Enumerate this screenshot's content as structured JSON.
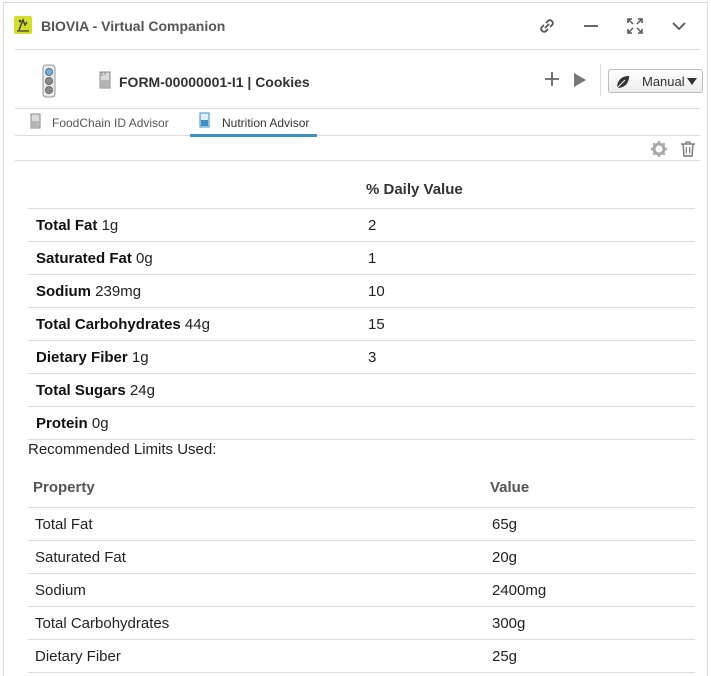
{
  "window": {
    "title": "BIOVIA - Virtual Companion",
    "accent": "#d3de2b"
  },
  "header": {
    "form_title": "FORM-00000001-I1 | Cookies",
    "mode_label": "Manual"
  },
  "tabs": [
    {
      "label": "FoodChain ID Advisor",
      "active": false
    },
    {
      "label": "Nutrition Advisor",
      "active": true
    }
  ],
  "nutrition": {
    "dv_header": "% Daily Value",
    "rows": [
      {
        "name": "Total Fat",
        "amount": "1g",
        "dv": "2"
      },
      {
        "name": "Saturated Fat",
        "amount": "0g",
        "dv": "1"
      },
      {
        "name": "Sodium",
        "amount": "239mg",
        "dv": "10"
      },
      {
        "name": "Total Carbohydrates",
        "amount": "44g",
        "dv": "15"
      },
      {
        "name": "Dietary Fiber",
        "amount": "1g",
        "dv": "3"
      },
      {
        "name": "Total Sugars",
        "amount": "24g",
        "dv": ""
      },
      {
        "name": "Protein",
        "amount": "0g",
        "dv": ""
      }
    ]
  },
  "limits": {
    "label": "Recommended Limits Used:",
    "headers": {
      "property": "Property",
      "value": "Value"
    },
    "rows": [
      {
        "property": "Total Fat",
        "value": "65g"
      },
      {
        "property": "Saturated Fat",
        "value": "20g"
      },
      {
        "property": "Sodium",
        "value": "2400mg"
      },
      {
        "property": "Total Carbohydrates",
        "value": "300g"
      },
      {
        "property": "Dietary Fiber",
        "value": "25g"
      }
    ]
  },
  "colors": {
    "tab_active": "#3d8fc6",
    "border": "#dcdcdc"
  }
}
